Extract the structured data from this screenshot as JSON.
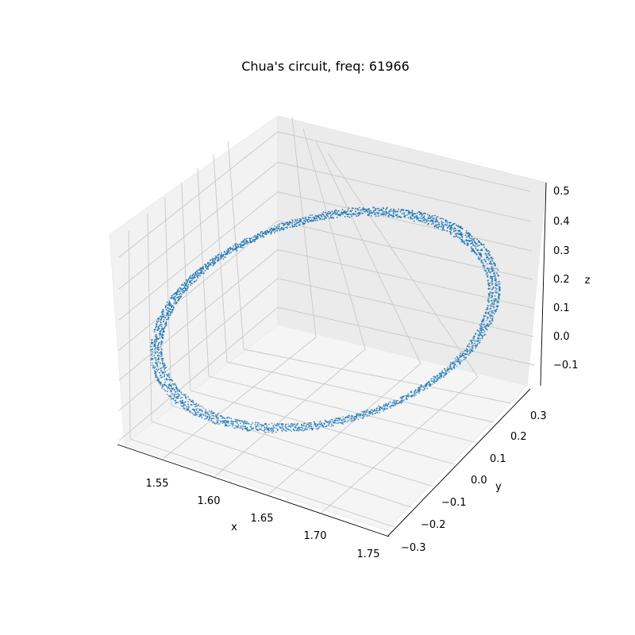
{
  "chart_data": {
    "type": "scatter",
    "projection": "3d",
    "title": "Chua's circuit, freq: 61966",
    "xlabel": "x",
    "ylabel": "y",
    "zlabel": "z",
    "xlim": [
      1.51,
      1.755
    ],
    "ylim": [
      -0.33,
      0.34
    ],
    "zlim": [
      -0.18,
      0.51
    ],
    "x_ticks": [
      "1.55",
      "1.60",
      "1.65",
      "1.70",
      "1.75"
    ],
    "y_ticks": [
      "−0.3",
      "−0.2",
      "−0.1",
      "0.0",
      "0.1",
      "0.2",
      "0.3"
    ],
    "z_ticks": [
      "−0.1",
      "0.0",
      "0.1",
      "0.2",
      "0.3",
      "0.4",
      "0.5"
    ],
    "grid": true,
    "marker_color": "#1f77b4",
    "series": [
      {
        "orbit": {
          "x_range": [
            1.52,
            1.75
          ],
          "y_range": [
            -0.32,
            0.32
          ],
          "z_range": [
            -0.17,
            0.47
          ],
          "band_count": 4,
          "point_count": 3000
        }
      }
    ]
  }
}
